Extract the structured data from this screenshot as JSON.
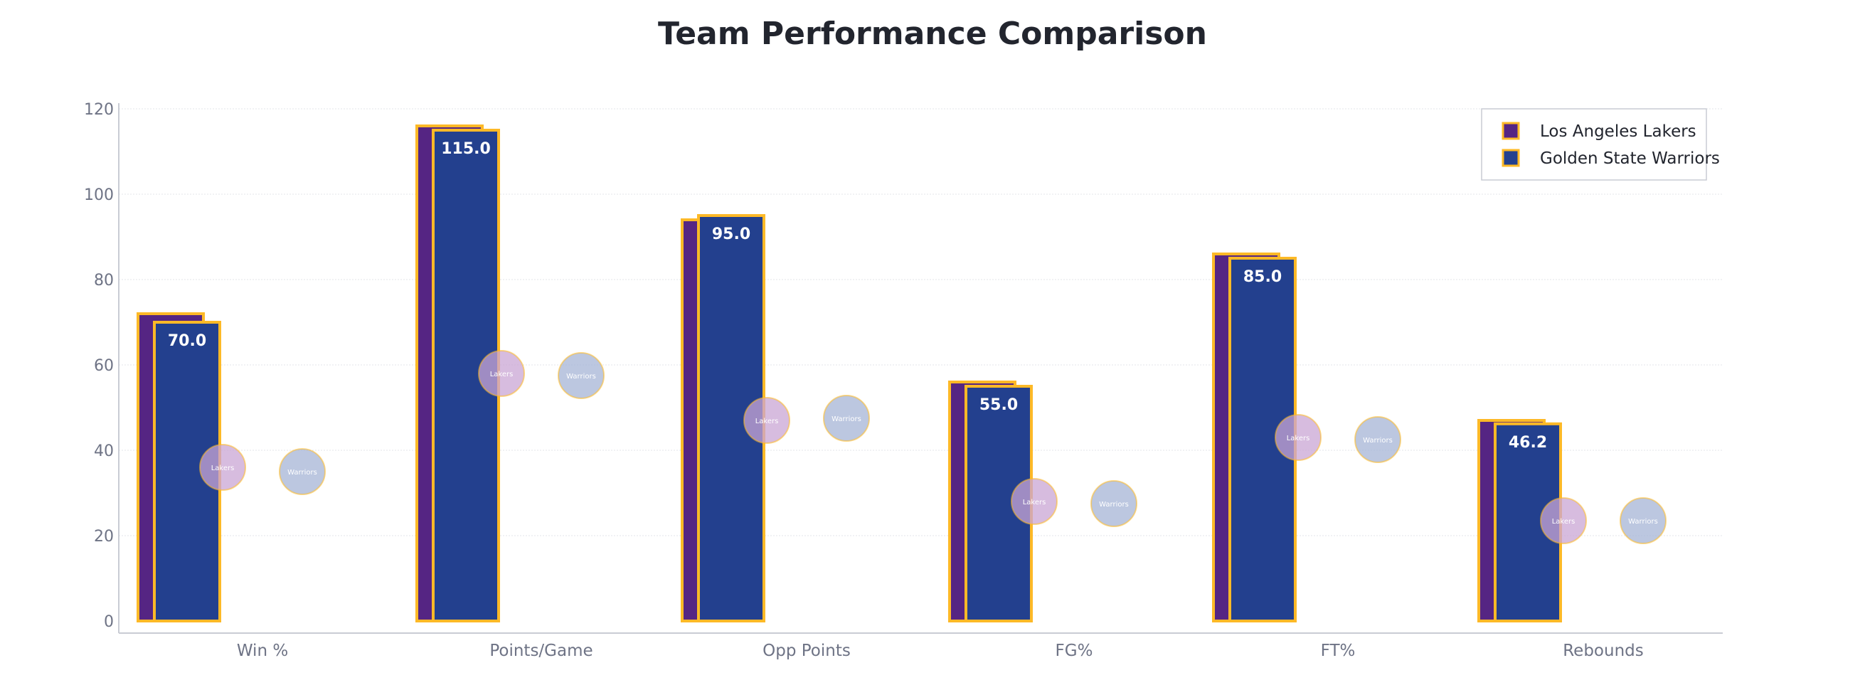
{
  "chart_data": {
    "type": "bar",
    "title": "Team Performance Comparison",
    "xlabel": "",
    "ylabel": "",
    "categories": [
      "Win %",
      "Points/Game",
      "Opp Points",
      "FG%",
      "FT%",
      "Rebounds"
    ],
    "ylim": [
      0,
      120
    ],
    "yticks": [
      0,
      20,
      40,
      60,
      80,
      100,
      120
    ],
    "grid": true,
    "legend_position": "top-right",
    "series": [
      {
        "name": "Los Angeles Lakers",
        "color": "#552583",
        "edge_color": "#FDB927",
        "values": [
          72.0,
          116.0,
          94.0,
          56.0,
          86.0,
          47.0
        ]
      },
      {
        "name": "Golden State Warriors",
        "color": "#23408E",
        "edge_color": "#FDB927",
        "values": [
          70.0,
          115.0,
          95.0,
          55.0,
          85.0,
          46.2
        ],
        "data_labels": [
          "70.0",
          "115.0",
          "95.0",
          "55.0",
          "85.0",
          "46.2"
        ]
      }
    ],
    "bubbles": [
      {
        "label": "Lakers",
        "category_index": 0,
        "y": 36,
        "color": "#C9A6D4"
      },
      {
        "label": "Warriors",
        "category_index": 0,
        "y": 35,
        "color": "#A6B4D6"
      },
      {
        "label": "Lakers",
        "category_index": 1,
        "y": 58,
        "color": "#C9A6D4"
      },
      {
        "label": "Warriors",
        "category_index": 1,
        "y": 57.5,
        "color": "#A6B4D6"
      },
      {
        "label": "Lakers",
        "category_index": 2,
        "y": 47,
        "color": "#C9A6D4"
      },
      {
        "label": "Warriors",
        "category_index": 2,
        "y": 47.5,
        "color": "#A6B4D6"
      },
      {
        "label": "Lakers",
        "category_index": 3,
        "y": 28,
        "color": "#C9A6D4"
      },
      {
        "label": "Warriors",
        "category_index": 3,
        "y": 27.5,
        "color": "#A6B4D6"
      },
      {
        "label": "Lakers",
        "category_index": 4,
        "y": 43,
        "color": "#C9A6D4"
      },
      {
        "label": "Warriors",
        "category_index": 4,
        "y": 42.5,
        "color": "#A6B4D6"
      },
      {
        "label": "Lakers",
        "category_index": 5,
        "y": 23.5,
        "color": "#C9A6D4"
      },
      {
        "label": "Warriors",
        "category_index": 5,
        "y": 23.5,
        "color": "#A6B4D6"
      }
    ]
  }
}
